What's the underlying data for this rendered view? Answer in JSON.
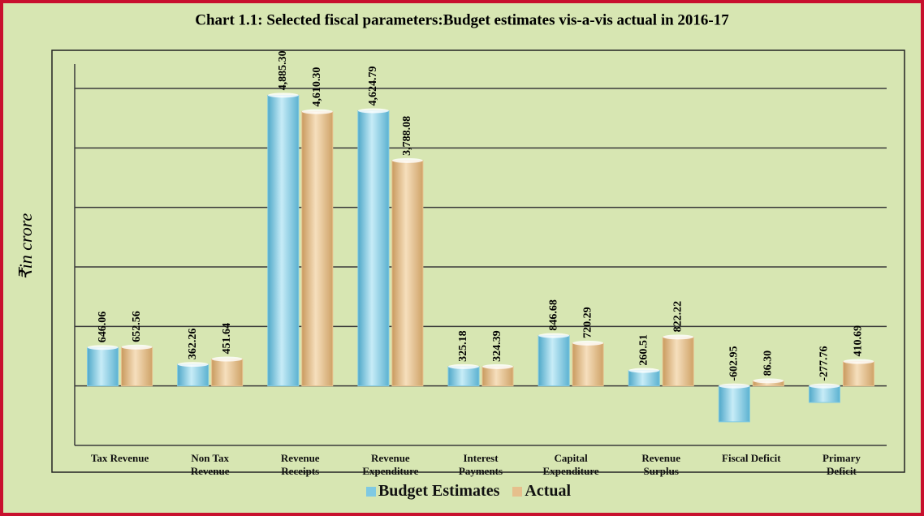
{
  "chart_data": {
    "type": "bar",
    "title": "Chart 1.1: Selected fiscal parameters:Budget estimates vis-a-vis actual in 2016-17",
    "y_label": "₹in crore",
    "categories": [
      "Tax Revenue",
      "Non Tax\nRevenue",
      "Revenue\nReceipts",
      "Revenue\nExpenditure",
      "Interest\nPayments",
      "Capital\nExpenditure",
      "Revenue\nSurplus",
      "Fiscal Deficit",
      "Primary\nDeficit"
    ],
    "series": [
      {
        "name": "Budget Estimates",
        "color": "#7fc9e2",
        "values": [
          646.06,
          362.26,
          4885.3,
          4624.79,
          325.18,
          846.68,
          260.51,
          -602.95,
          -277.76
        ],
        "value_labels": [
          "646.06",
          "362.26",
          "4,885.30",
          "4,624.79",
          "325.18",
          "846.68",
          "260.51",
          "-602.95",
          "-277.76"
        ]
      },
      {
        "name": "Actual",
        "color": "#e6bf8c",
        "values": [
          652.56,
          451.64,
          4610.3,
          3788.08,
          324.39,
          720.29,
          822.22,
          86.3,
          410.69
        ],
        "value_labels": [
          "652.56",
          "451.64",
          "4,610.30",
          "3,788.08",
          "324.39",
          "720.29",
          "822.22",
          "86.30",
          "410.69"
        ]
      }
    ],
    "ylim": [
      -1000,
      5000
    ],
    "yticks": [
      -1000,
      0,
      1000,
      2000,
      3000,
      4000,
      5000
    ],
    "grid": true
  }
}
